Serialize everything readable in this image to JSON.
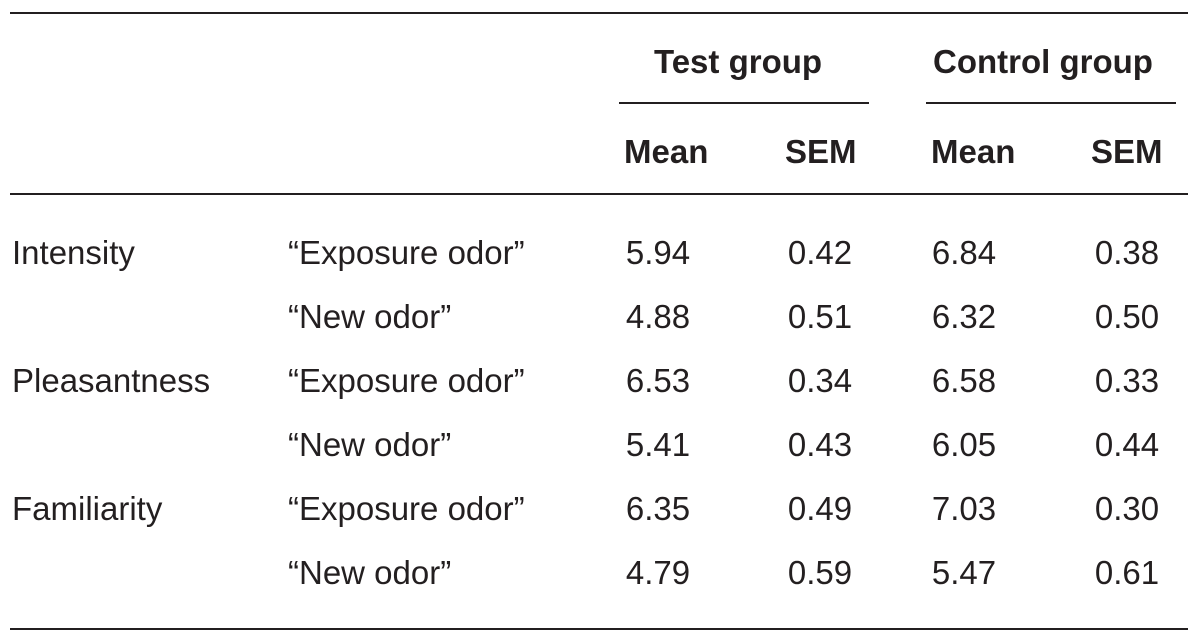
{
  "table": {
    "groups": [
      {
        "label": "Test group",
        "columns": [
          "Mean",
          "SEM"
        ]
      },
      {
        "label": "Control group",
        "columns": [
          "Mean",
          "SEM"
        ]
      }
    ],
    "rows": [
      {
        "measure": "Intensity",
        "odor": "“Exposure odor”",
        "test_mean": "5.94",
        "test_sem": "0.42",
        "control_mean": "6.84",
        "control_sem": "0.38"
      },
      {
        "measure": "",
        "odor": "“New odor”",
        "test_mean": "4.88",
        "test_sem": "0.51",
        "control_mean": "6.32",
        "control_sem": "0.50"
      },
      {
        "measure": "Pleasantness",
        "odor": "“Exposure odor”",
        "test_mean": "6.53",
        "test_sem": "0.34",
        "control_mean": "6.58",
        "control_sem": "0.33"
      },
      {
        "measure": "",
        "odor": "“New odor”",
        "test_mean": "5.41",
        "test_sem": "0.43",
        "control_mean": "6.05",
        "control_sem": "0.44"
      },
      {
        "measure": "Familiarity",
        "odor": "“Exposure odor”",
        "test_mean": "6.35",
        "test_sem": "0.49",
        "control_mean": "7.03",
        "control_sem": "0.30"
      },
      {
        "measure": "",
        "odor": "“New odor”",
        "test_mean": "4.79",
        "test_sem": "0.59",
        "control_mean": "5.47",
        "control_sem": "0.61"
      }
    ]
  }
}
